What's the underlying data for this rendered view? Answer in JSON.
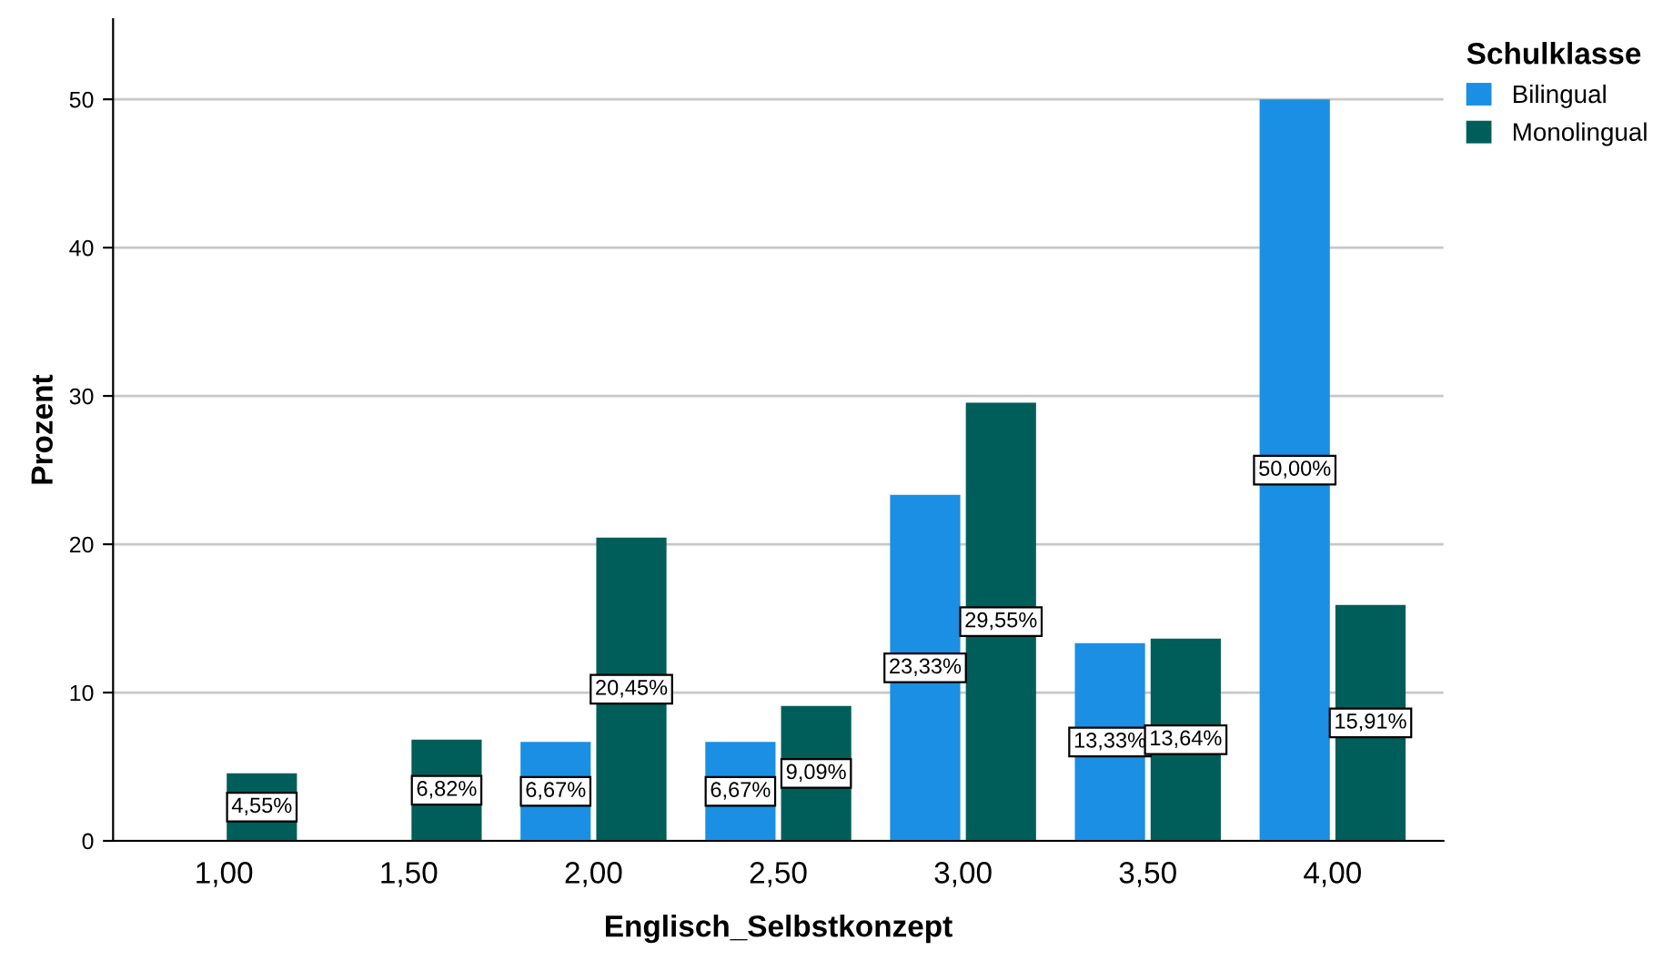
{
  "chart_data": {
    "type": "bar",
    "xlabel": "Englisch_Selbstkonzept",
    "ylabel": "Prozent",
    "legend_title": "Schulklasse",
    "legend": "top right",
    "grid": "y",
    "categories": [
      "1,00",
      "1,50",
      "2,00",
      "2,50",
      "3,00",
      "3,50",
      "4,00"
    ],
    "series": [
      {
        "name": "Bilingual",
        "color": "#1a8fe3",
        "values": [
          null,
          null,
          6.67,
          6.67,
          23.33,
          13.33,
          50.0
        ],
        "value_labels": [
          null,
          null,
          "6,67%",
          "6,67%",
          "23,33%",
          "13,33%",
          "50,00%"
        ]
      },
      {
        "name": "Monolingual",
        "color": "#005e5a",
        "values": [
          4.55,
          6.82,
          20.45,
          9.09,
          29.55,
          13.64,
          15.91
        ],
        "value_labels": [
          "4,55%",
          "6,82%",
          "20,45%",
          "9,09%",
          "29,55%",
          "13,64%",
          "15,91%"
        ]
      }
    ],
    "ylim": [
      0,
      55.4
    ],
    "yticks": [
      0,
      10,
      20,
      30,
      40,
      50
    ]
  }
}
